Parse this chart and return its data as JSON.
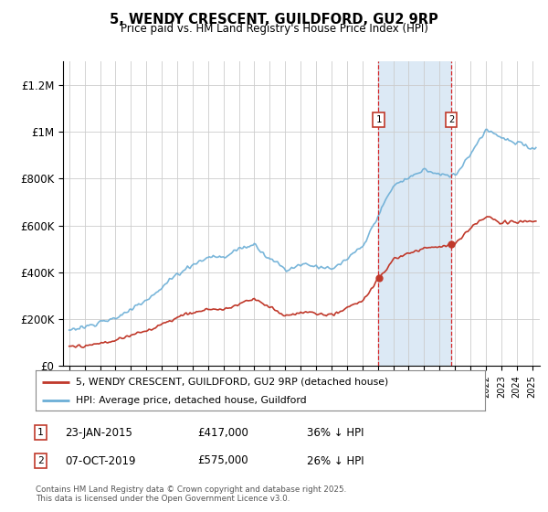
{
  "title": "5, WENDY CRESCENT, GUILDFORD, GU2 9RP",
  "subtitle": "Price paid vs. HM Land Registry's House Price Index (HPI)",
  "ylabel_ticks": [
    "£0",
    "£200K",
    "£400K",
    "£600K",
    "£800K",
    "£1M",
    "£1.2M"
  ],
  "ytick_values": [
    0,
    200000,
    400000,
    600000,
    800000,
    1000000,
    1200000
  ],
  "ylim": [
    0,
    1300000
  ],
  "legend_line1": "5, WENDY CRESCENT, GUILDFORD, GU2 9RP (detached house)",
  "legend_line2": "HPI: Average price, detached house, Guildford",
  "sale1_date": "23-JAN-2015",
  "sale1_price": "£417,000",
  "sale1_hpi": "36% ↓ HPI",
  "sale2_date": "07-OCT-2019",
  "sale2_price": "£575,000",
  "sale2_hpi": "26% ↓ HPI",
  "footer": "Contains HM Land Registry data © Crown copyright and database right 2025.\nThis data is licensed under the Open Government Licence v3.0.",
  "hpi_color": "#6baed6",
  "price_color": "#c0392b",
  "sale1_x": 2015.05,
  "sale2_x": 2019.77,
  "sale1_price_val": 417000,
  "sale2_price_val": 575000,
  "shade_color": "#dce9f5"
}
